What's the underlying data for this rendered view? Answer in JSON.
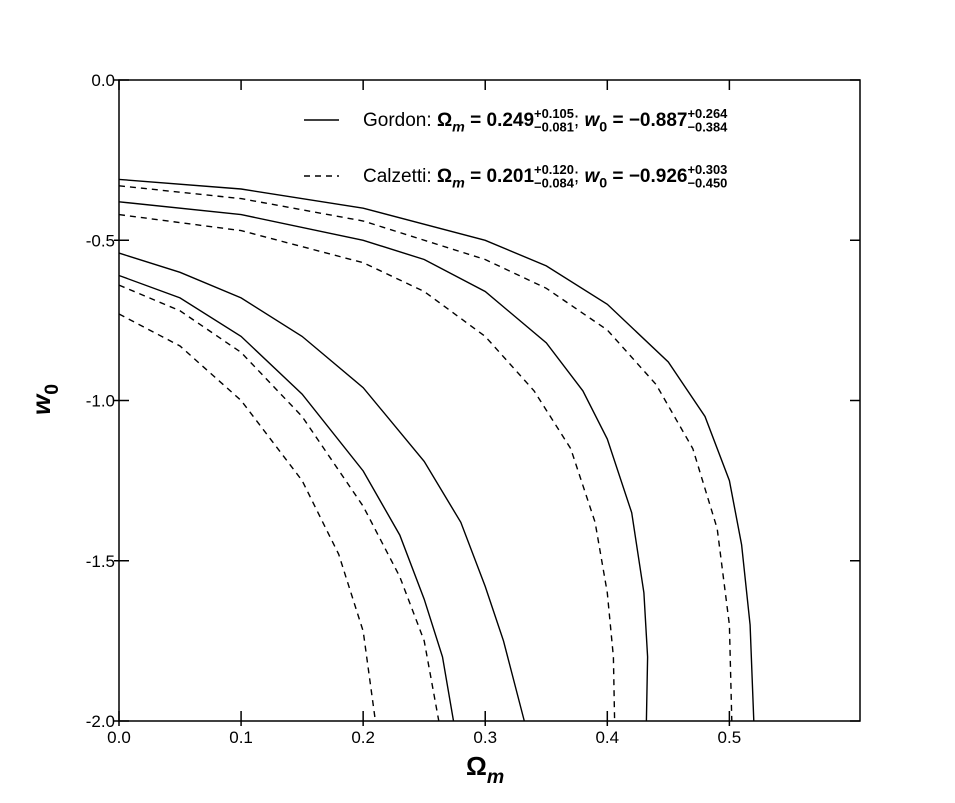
{
  "chart_data": {
    "type": "contour",
    "xlabel": [
      {
        "text": "Ω",
        "bold": true
      },
      {
        "text": "m",
        "bold": true,
        "italic": true,
        "sub": true
      }
    ],
    "ylabel": [
      {
        "text": "w",
        "bold": true,
        "italic": true
      },
      {
        "text": "0",
        "bold": true,
        "sub": true
      }
    ],
    "xlim": [
      0,
      0.607
    ],
    "ylim": [
      -2,
      0
    ],
    "xticks": [
      {
        "value": 0,
        "label": "0.0"
      },
      {
        "value": 0.1,
        "label": "0.1"
      },
      {
        "value": 0.2,
        "label": "0.2"
      },
      {
        "value": 0.3,
        "label": "0.3"
      },
      {
        "value": 0.4,
        "label": "0.4"
      },
      {
        "value": 0.5,
        "label": "0.5"
      }
    ],
    "yticks": [
      {
        "value": 0,
        "label": "0.0"
      },
      {
        "value": -0.5,
        "label": "-0.5"
      },
      {
        "value": -1,
        "label": "-1.0"
      },
      {
        "value": -1.5,
        "label": "-1.5"
      },
      {
        "value": -2,
        "label": "-2.0"
      }
    ],
    "series": [
      {
        "color": "#000000",
        "dashed": false,
        "legend": [
          {
            "text": "Gordon: "
          },
          {
            "text": "Ω",
            "bold": true
          },
          {
            "text": "m",
            "bold": true,
            "italic": true,
            "sub": true
          },
          {
            "text": " = ",
            "bold": true
          },
          {
            "text": "0.249",
            "bold": true
          },
          {
            "text": "+0.105",
            "bold": true,
            "sup": true
          },
          {
            "text": "−0.081",
            "bold": true,
            "low": true
          },
          {
            "text": "; "
          },
          {
            "text": "w",
            "bold": true,
            "italic": true
          },
          {
            "text": "0",
            "bold": true,
            "sub": true
          },
          {
            "text": " = ",
            "bold": true
          },
          {
            "text": "−0.887",
            "bold": true
          },
          {
            "text": "+0.264",
            "bold": true,
            "sup": true
          },
          {
            "text": "−0.384",
            "bold": true,
            "low": true
          }
        ],
        "curves": [
          {
            "x": [
              0,
              0.1,
              0.2,
              0.3,
              0.35,
              0.4,
              0.45,
              0.48,
              0.5,
              0.51,
              0.517,
              0.52
            ],
            "y": [
              -0.31,
              -0.34,
              -0.4,
              -0.5,
              -0.58,
              -0.7,
              -0.88,
              -1.05,
              -1.25,
              -1.45,
              -1.7,
              -2
            ]
          },
          {
            "x": [
              0,
              0.1,
              0.2,
              0.25,
              0.3,
              0.35,
              0.38,
              0.4,
              0.42,
              0.43,
              0.433,
              0.432
            ],
            "y": [
              -0.38,
              -0.42,
              -0.5,
              -0.56,
              -0.66,
              -0.82,
              -0.97,
              -1.12,
              -1.35,
              -1.6,
              -1.8,
              -2
            ]
          },
          {
            "x": [
              0,
              0.05,
              0.1,
              0.15,
              0.2,
              0.25,
              0.28,
              0.3,
              0.315,
              0.332
            ],
            "y": [
              -0.54,
              -0.6,
              -0.68,
              -0.8,
              -0.96,
              -1.19,
              -1.38,
              -1.58,
              -1.75,
              -2
            ]
          },
          {
            "x": [
              0,
              0.05,
              0.1,
              0.15,
              0.2,
              0.23,
              0.25,
              0.265,
              0.274
            ],
            "y": [
              -0.61,
              -0.68,
              -0.8,
              -0.98,
              -1.22,
              -1.42,
              -1.62,
              -1.8,
              -2
            ]
          }
        ]
      },
      {
        "color": "#000000",
        "dashed": true,
        "legend": [
          {
            "text": "Calzetti: "
          },
          {
            "text": "Ω",
            "bold": true
          },
          {
            "text": "m",
            "bold": true,
            "italic": true,
            "sub": true
          },
          {
            "text": " = ",
            "bold": true
          },
          {
            "text": "0.201",
            "bold": true
          },
          {
            "text": "+0.120",
            "bold": true,
            "sup": true
          },
          {
            "text": "−0.084",
            "bold": true,
            "low": true
          },
          {
            "text": "; "
          },
          {
            "text": "w",
            "bold": true,
            "italic": true
          },
          {
            "text": "0",
            "bold": true,
            "sub": true
          },
          {
            "text": " = ",
            "bold": true
          },
          {
            "text": "−0.926",
            "bold": true
          },
          {
            "text": "+0.303",
            "bold": true,
            "sup": true
          },
          {
            "text": "−0.450",
            "bold": true,
            "low": true
          }
        ],
        "curves": [
          {
            "x": [
              0,
              0.1,
              0.2,
              0.3,
              0.35,
              0.4,
              0.44,
              0.47,
              0.49,
              0.5,
              0.502
            ],
            "y": [
              -0.33,
              -0.37,
              -0.44,
              -0.56,
              -0.65,
              -0.78,
              -0.95,
              -1.15,
              -1.4,
              -1.7,
              -2
            ]
          },
          {
            "x": [
              0,
              0.1,
              0.2,
              0.25,
              0.3,
              0.34,
              0.37,
              0.39,
              0.4,
              0.405,
              0.406
            ],
            "y": [
              -0.42,
              -0.47,
              -0.57,
              -0.66,
              -0.8,
              -0.97,
              -1.15,
              -1.38,
              -1.6,
              -1.8,
              -2
            ]
          },
          {
            "x": [
              0,
              0.05,
              0.1,
              0.15,
              0.2,
              0.23,
              0.25,
              0.262
            ],
            "y": [
              -0.64,
              -0.72,
              -0.85,
              -1.05,
              -1.33,
              -1.55,
              -1.75,
              -2
            ]
          },
          {
            "x": [
              0,
              0.05,
              0.1,
              0.15,
              0.18,
              0.2,
              0.21
            ],
            "y": [
              -0.73,
              -0.83,
              -1,
              -1.25,
              -1.48,
              -1.72,
              -2
            ]
          }
        ]
      }
    ]
  }
}
